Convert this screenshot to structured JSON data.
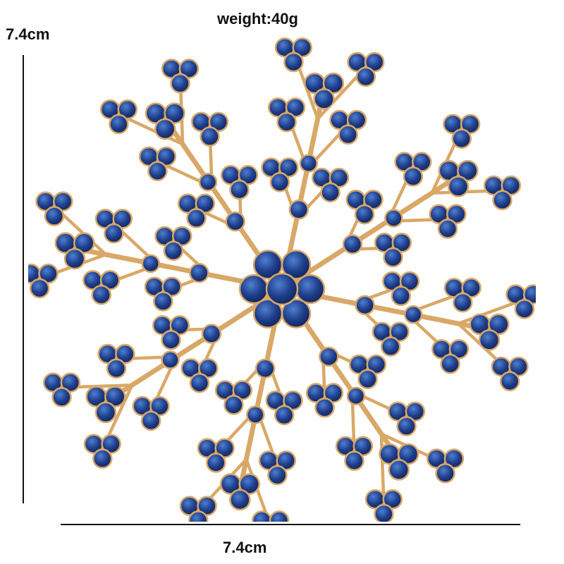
{
  "labels": {
    "weight": "weight:40g",
    "height": "7.4cm",
    "width": "7.4cm"
  },
  "product": {
    "metal_color": "#d9a867",
    "metal_dark": "#b07e43",
    "stone_color": "#1f3f8c",
    "stone_dark": "#0f2358",
    "stone_light": "#4f7fd0"
  }
}
